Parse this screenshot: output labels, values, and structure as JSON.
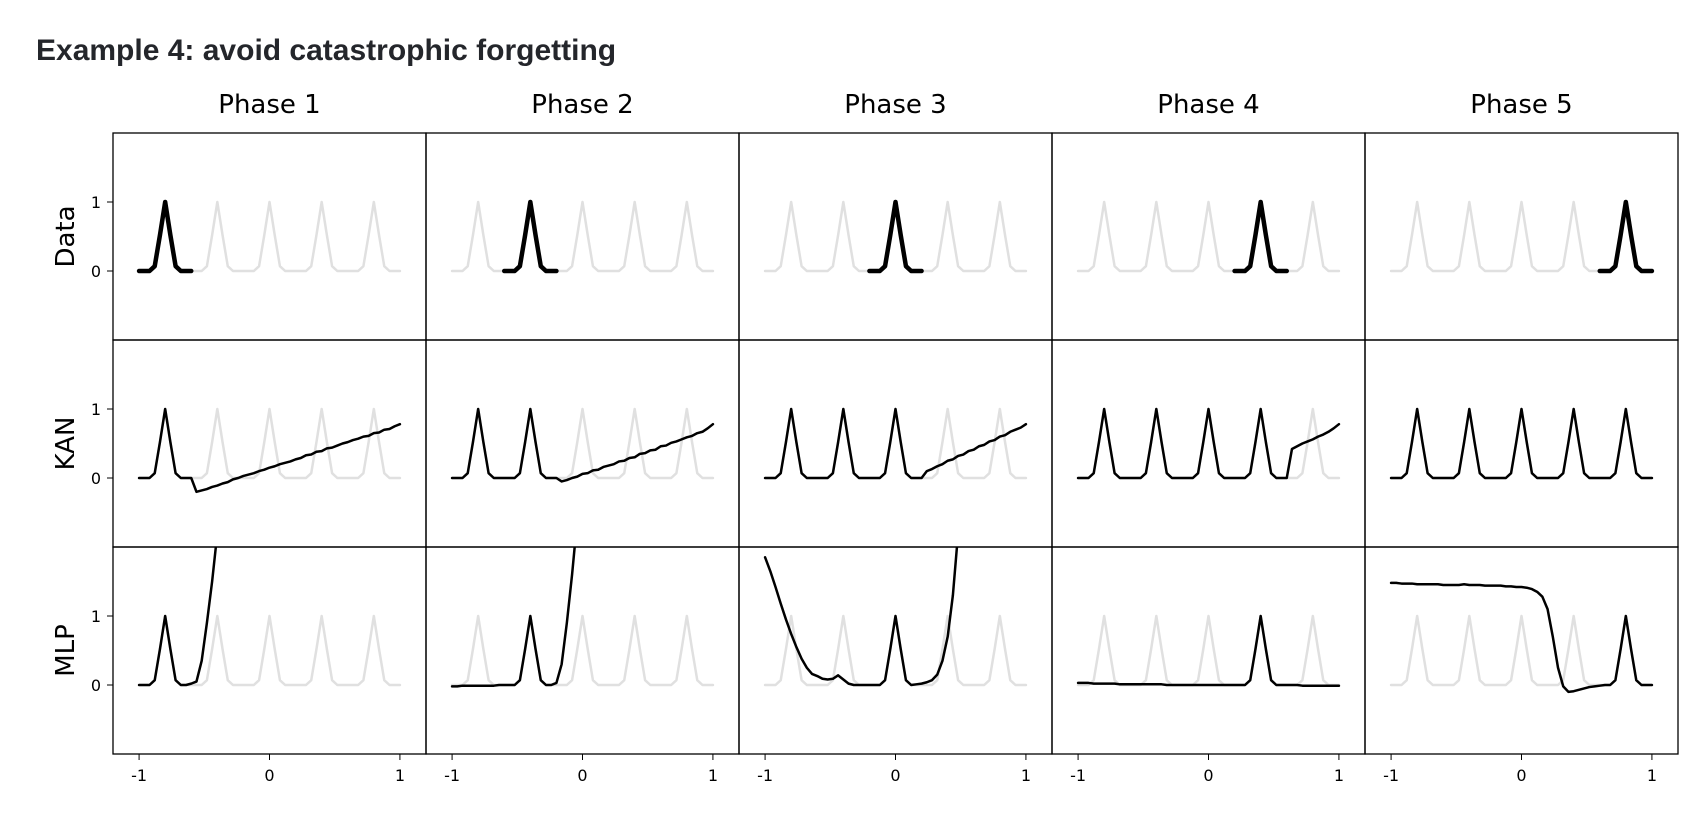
{
  "chart_data": {
    "type": "line",
    "title": "Example 4: avoid catastrophic forgetting",
    "columns": [
      "Phase 1",
      "Phase 2",
      "Phase 3",
      "Phase 4",
      "Phase 5"
    ],
    "x": [
      -1,
      -0.96,
      -0.92,
      -0.88,
      -0.84,
      -0.8,
      -0.76,
      -0.72,
      -0.68,
      -0.64,
      -0.6,
      -0.56,
      -0.52,
      -0.48,
      -0.44,
      -0.4,
      -0.36,
      -0.32,
      -0.28,
      -0.24,
      -0.2,
      -0.16,
      -0.12,
      -0.08,
      -0.04,
      0,
      0.04,
      0.08,
      0.12,
      0.16,
      0.2,
      0.24,
      0.28,
      0.32,
      0.36,
      0.4,
      0.44,
      0.48,
      0.52,
      0.56,
      0.6,
      0.64,
      0.68,
      0.72,
      0.76,
      0.8,
      0.84,
      0.88,
      0.92,
      0.96,
      1
    ],
    "xlim": [
      -1.2,
      1.2
    ],
    "xticks": [
      -1,
      0,
      1
    ],
    "ylim": [
      -1,
      2
    ],
    "yticks": [
      0,
      1
    ],
    "color": "#000000",
    "reference": {
      "color": "#e0e0e0",
      "values": [
        0,
        0,
        0,
        0.07,
        0.52,
        1,
        0.52,
        0.07,
        0,
        0,
        0,
        0,
        0,
        0.07,
        0.52,
        1,
        0.52,
        0.07,
        0,
        0,
        0,
        0,
        0,
        0.07,
        0.52,
        1,
        0.52,
        0.07,
        0,
        0,
        0,
        0,
        0,
        0.07,
        0.52,
        1,
        0.52,
        0.07,
        0,
        0,
        0,
        0,
        0,
        0.07,
        0.52,
        1,
        0.52,
        0.07,
        0,
        0,
        0
      ]
    },
    "rows": [
      {
        "label": "Data",
        "panels": [
          [
            0,
            0,
            0,
            0.07,
            0.52,
            1,
            0.52,
            0.07,
            0,
            0,
            0,
            null,
            null,
            null,
            null,
            null,
            null,
            null,
            null,
            null,
            null,
            null,
            null,
            null,
            null,
            null,
            null,
            null,
            null,
            null,
            null,
            null,
            null,
            null,
            null,
            null,
            null,
            null,
            null,
            null,
            null,
            null,
            null,
            null,
            null,
            null,
            null,
            null,
            null,
            null,
            null
          ],
          [
            null,
            null,
            null,
            null,
            null,
            null,
            null,
            null,
            null,
            null,
            0,
            0,
            0,
            0.07,
            0.52,
            1,
            0.52,
            0.07,
            0,
            0,
            0,
            null,
            null,
            null,
            null,
            null,
            null,
            null,
            null,
            null,
            null,
            null,
            null,
            null,
            null,
            null,
            null,
            null,
            null,
            null,
            null,
            null,
            null,
            null,
            null,
            null,
            null,
            null,
            null,
            null,
            null
          ],
          [
            null,
            null,
            null,
            null,
            null,
            null,
            null,
            null,
            null,
            null,
            null,
            null,
            null,
            null,
            null,
            null,
            null,
            null,
            null,
            null,
            0,
            0,
            0,
            0.07,
            0.52,
            1,
            0.52,
            0.07,
            0,
            0,
            0,
            null,
            null,
            null,
            null,
            null,
            null,
            null,
            null,
            null,
            null,
            null,
            null,
            null,
            null,
            null,
            null,
            null,
            null,
            null,
            null
          ],
          [
            null,
            null,
            null,
            null,
            null,
            null,
            null,
            null,
            null,
            null,
            null,
            null,
            null,
            null,
            null,
            null,
            null,
            null,
            null,
            null,
            null,
            null,
            null,
            null,
            null,
            null,
            null,
            null,
            null,
            null,
            0,
            0,
            0,
            0.07,
            0.52,
            1,
            0.52,
            0.07,
            0,
            0,
            0,
            null,
            null,
            null,
            null,
            null,
            null,
            null,
            null,
            null,
            null
          ],
          [
            null,
            null,
            null,
            null,
            null,
            null,
            null,
            null,
            null,
            null,
            null,
            null,
            null,
            null,
            null,
            null,
            null,
            null,
            null,
            null,
            null,
            null,
            null,
            null,
            null,
            null,
            null,
            null,
            null,
            null,
            null,
            null,
            null,
            null,
            null,
            null,
            null,
            null,
            null,
            null,
            0,
            0,
            0,
            0.07,
            0.52,
            1,
            0.52,
            0.07,
            0,
            0,
            0
          ]
        ]
      },
      {
        "label": "KAN",
        "panels": [
          [
            0,
            0,
            0,
            0.07,
            0.52,
            1,
            0.52,
            0.07,
            0,
            0,
            0,
            -0.2,
            -0.18,
            -0.16,
            -0.13,
            -0.11,
            -0.08,
            -0.06,
            -0.02,
            0,
            0.03,
            0.05,
            0.07,
            0.1,
            0.12,
            0.15,
            0.17,
            0.2,
            0.22,
            0.24,
            0.27,
            0.29,
            0.33,
            0.34,
            0.38,
            0.39,
            0.43,
            0.44,
            0.47,
            0.5,
            0.52,
            0.55,
            0.57,
            0.6,
            0.61,
            0.65,
            0.66,
            0.7,
            0.71,
            0.75,
            0.78
          ],
          [
            0,
            0,
            0,
            0.07,
            0.52,
            1,
            0.52,
            0.07,
            0,
            0,
            0,
            0,
            0,
            0.07,
            0.52,
            1,
            0.52,
            0.07,
            0,
            0,
            0,
            -0.05,
            -0.03,
            0,
            0.02,
            0.06,
            0.07,
            0.11,
            0.12,
            0.16,
            0.18,
            0.2,
            0.24,
            0.25,
            0.29,
            0.3,
            0.35,
            0.36,
            0.4,
            0.41,
            0.46,
            0.47,
            0.51,
            0.53,
            0.56,
            0.59,
            0.61,
            0.65,
            0.67,
            0.72,
            0.78
          ],
          [
            0,
            0,
            0,
            0.07,
            0.52,
            1,
            0.52,
            0.07,
            0,
            0,
            0,
            0,
            0,
            0.07,
            0.52,
            1,
            0.52,
            0.07,
            0,
            0,
            0,
            0,
            0,
            0.07,
            0.52,
            1,
            0.52,
            0.07,
            0,
            0,
            0,
            0.1,
            0.13,
            0.17,
            0.2,
            0.25,
            0.27,
            0.32,
            0.34,
            0.39,
            0.41,
            0.46,
            0.48,
            0.53,
            0.55,
            0.6,
            0.62,
            0.67,
            0.7,
            0.73,
            0.78
          ],
          [
            0,
            0,
            0,
            0.07,
            0.52,
            1,
            0.52,
            0.07,
            0,
            0,
            0,
            0,
            0,
            0.07,
            0.52,
            1,
            0.52,
            0.07,
            0,
            0,
            0,
            0,
            0,
            0.07,
            0.52,
            1,
            0.52,
            0.07,
            0,
            0,
            0,
            0,
            0,
            0.07,
            0.52,
            1,
            0.52,
            0.07,
            0,
            0,
            0,
            0.42,
            0.46,
            0.5,
            0.53,
            0.56,
            0.6,
            0.63,
            0.67,
            0.72,
            0.78
          ],
          [
            0,
            0,
            0,
            0.07,
            0.52,
            1,
            0.52,
            0.07,
            0,
            0,
            0,
            0,
            0,
            0.07,
            0.52,
            1,
            0.52,
            0.07,
            0,
            0,
            0,
            0,
            0,
            0.07,
            0.52,
            1,
            0.52,
            0.07,
            0,
            0,
            0,
            0,
            0,
            0.07,
            0.52,
            1,
            0.52,
            0.07,
            0,
            0,
            0,
            0,
            0,
            0.07,
            0.52,
            1,
            0.52,
            0.07,
            0,
            0,
            0
          ]
        ]
      },
      {
        "label": "MLP",
        "panels": [
          [
            0,
            0,
            0,
            0.07,
            0.52,
            1,
            0.52,
            0.07,
            0,
            0,
            0.02,
            0.05,
            0.35,
            0.9,
            1.5,
            2.2,
            null,
            null,
            null,
            null,
            null,
            null,
            null,
            null,
            null,
            null,
            null,
            null,
            null,
            null,
            null,
            null,
            null,
            null,
            null,
            null,
            null,
            null,
            null,
            null,
            null,
            null,
            null,
            null,
            null,
            null,
            null,
            null,
            null,
            null,
            null
          ],
          [
            -0.02,
            -0.02,
            -0.01,
            -0.01,
            -0.01,
            -0.01,
            -0.01,
            -0.01,
            -0.01,
            0,
            0,
            0,
            0,
            0.07,
            0.52,
            1,
            0.52,
            0.07,
            0,
            0,
            0.03,
            0.3,
            0.9,
            1.6,
            2.4,
            null,
            null,
            null,
            null,
            null,
            null,
            null,
            null,
            null,
            null,
            null,
            null,
            null,
            null,
            null,
            null,
            null,
            null,
            null,
            null,
            null,
            null,
            null,
            null,
            null,
            null
          ],
          [
            1.85,
            1.65,
            1.42,
            1.18,
            0.95,
            0.74,
            0.55,
            0.38,
            0.25,
            0.16,
            0.13,
            0.09,
            0.08,
            0.09,
            0.14,
            0.08,
            0.02,
            0,
            0,
            0,
            0,
            0,
            0,
            0.07,
            0.52,
            1,
            0.52,
            0.07,
            0,
            0.01,
            0.02,
            0.04,
            0.07,
            0.15,
            0.35,
            0.7,
            1.3,
            2.2,
            null,
            null,
            null,
            null,
            null,
            null,
            null,
            null,
            null,
            null,
            null,
            null,
            null
          ],
          [
            0.03,
            0.03,
            0.03,
            0.02,
            0.02,
            0.02,
            0.02,
            0.02,
            0.01,
            0.01,
            0.01,
            0.01,
            0.01,
            0.01,
            0.01,
            0.01,
            0.01,
            0,
            0,
            0,
            0,
            0,
            0,
            0,
            0,
            0,
            0,
            0,
            0,
            0,
            0,
            0,
            0,
            0.07,
            0.52,
            1,
            0.52,
            0.07,
            0,
            0,
            0,
            0,
            0,
            -0.01,
            -0.01,
            -0.01,
            -0.01,
            -0.01,
            -0.01,
            -0.01,
            -0.01
          ],
          [
            1.48,
            1.48,
            1.47,
            1.47,
            1.47,
            1.46,
            1.46,
            1.46,
            1.46,
            1.46,
            1.45,
            1.45,
            1.45,
            1.45,
            1.46,
            1.45,
            1.45,
            1.45,
            1.44,
            1.44,
            1.44,
            1.44,
            1.43,
            1.43,
            1.42,
            1.42,
            1.41,
            1.39,
            1.35,
            1.28,
            1.1,
            0.7,
            0.25,
            -0.02,
            -0.1,
            -0.09,
            -0.07,
            -0.05,
            -0.03,
            -0.02,
            -0.01,
            0,
            0,
            0.07,
            0.52,
            1,
            0.52,
            0.07,
            0,
            0,
            0
          ]
        ]
      }
    ]
  }
}
